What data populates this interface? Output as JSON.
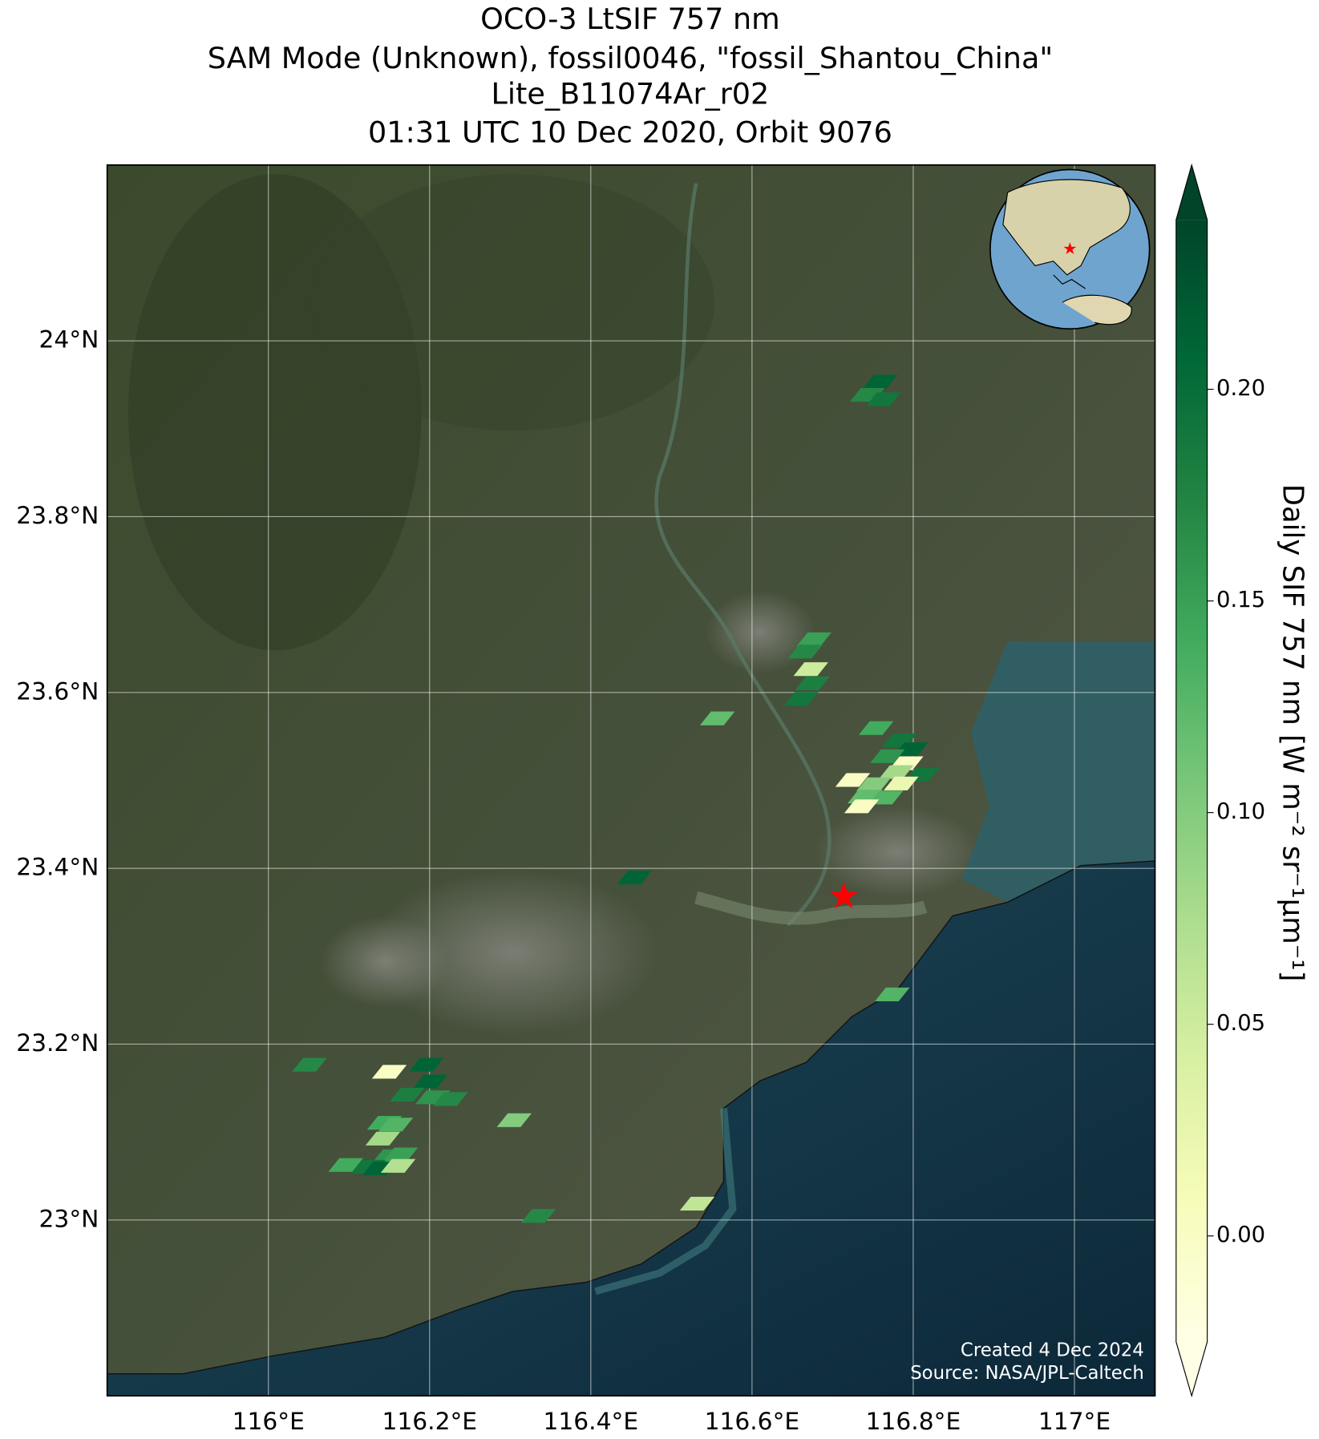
{
  "chart_data": {
    "type": "map",
    "title": "OCO-3 LtSIF 757 nm",
    "subtitle": [
      "SAM Mode (Unknown), fossil0046, \"fossil_Shantou_China\"",
      "Lite_B11074Ar_r02",
      "01:31 UTC 10 Dec 2020, Orbit 9076"
    ],
    "xlim": [
      115.8,
      117.1
    ],
    "ylim": [
      22.8,
      24.2
    ],
    "xticks": [
      {
        "value": 116,
        "label": "116°E"
      },
      {
        "value": 116.2,
        "label": "116.2°E"
      },
      {
        "value": 116.4,
        "label": "116.4°E"
      },
      {
        "value": 116.6,
        "label": "116.6°E"
      },
      {
        "value": 116.8,
        "label": "116.8°E"
      },
      {
        "value": 117,
        "label": "117°E"
      }
    ],
    "yticks": [
      {
        "value": 23,
        "label": "23°N"
      },
      {
        "value": 23.2,
        "label": "23.2°N"
      },
      {
        "value": 23.4,
        "label": "23.4°N"
      },
      {
        "value": 23.6,
        "label": "23.6°N"
      },
      {
        "value": 23.8,
        "label": "23.8°N"
      },
      {
        "value": 24,
        "label": "24°N"
      }
    ],
    "grid": true,
    "points": {
      "lon": [
        116.759,
        116.743,
        116.763,
        116.677,
        116.666,
        116.673,
        116.675,
        116.661,
        116.557,
        116.754,
        116.783,
        116.797,
        116.768,
        116.791,
        116.811,
        116.779,
        116.725,
        116.751,
        116.785,
        116.74,
        116.766,
        116.736,
        116.454,
        116.774,
        116.051,
        116.15,
        116.196,
        116.201,
        116.172,
        116.204,
        116.226,
        116.144,
        116.158,
        116.142,
        116.15,
        116.164,
        116.096,
        116.124,
        116.138,
        116.161,
        116.305,
        116.335,
        116.532
      ],
      "lat": [
        23.953,
        23.938,
        23.933,
        23.66,
        23.646,
        23.626,
        23.61,
        23.592,
        23.57,
        23.559,
        23.545,
        23.535,
        23.527,
        23.519,
        23.506,
        23.509,
        23.5,
        23.495,
        23.496,
        23.481,
        23.48,
        23.47,
        23.389,
        23.256,
        23.176,
        23.168,
        23.176,
        23.157,
        23.142,
        23.139,
        23.137,
        23.11,
        23.108,
        23.092,
        23.072,
        23.074,
        23.062,
        23.06,
        23.058,
        23.061,
        23.113,
        23.004,
        23.018
      ],
      "values": [
        0.21,
        0.17,
        0.19,
        0.15,
        0.17,
        0.05,
        0.18,
        0.19,
        0.12,
        0.14,
        0.19,
        0.21,
        0.16,
        0.0,
        0.19,
        0.08,
        0.0,
        0.1,
        0.02,
        0.12,
        0.13,
        0.0,
        0.21,
        0.13,
        0.17,
        0.0,
        0.21,
        0.21,
        0.18,
        0.16,
        0.17,
        0.14,
        0.13,
        0.08,
        0.16,
        0.15,
        0.14,
        0.19,
        0.21,
        0.07,
        0.1,
        0.17,
        0.06
      ]
    },
    "colorbar": {
      "label": "Daily SIF 757 nm [W m⁻² sr⁻¹μm⁻¹]",
      "lim": [
        -0.025,
        0.24
      ],
      "ticks": [
        {
          "value": 0,
          "label": "0.00"
        },
        0.05,
        {
          "value": 0.1,
          "label": "0.10"
        },
        0.15,
        {
          "value": 0.2,
          "label": "0.20"
        }
      ],
      "colormap": [
        "#ffffe5",
        "#f7fcb9",
        "#d9f0a3",
        "#addd8e",
        "#78c679",
        "#41ab5d",
        "#238443",
        "#006837",
        "#004529"
      ],
      "extend": "both"
    },
    "site": {
      "lon": 116.714,
      "lat": 23.368,
      "color": "#ff0000"
    },
    "annotations": [
      "Created 4 Dec 2024",
      "Source: NASA/JPL-Caltech"
    ]
  }
}
